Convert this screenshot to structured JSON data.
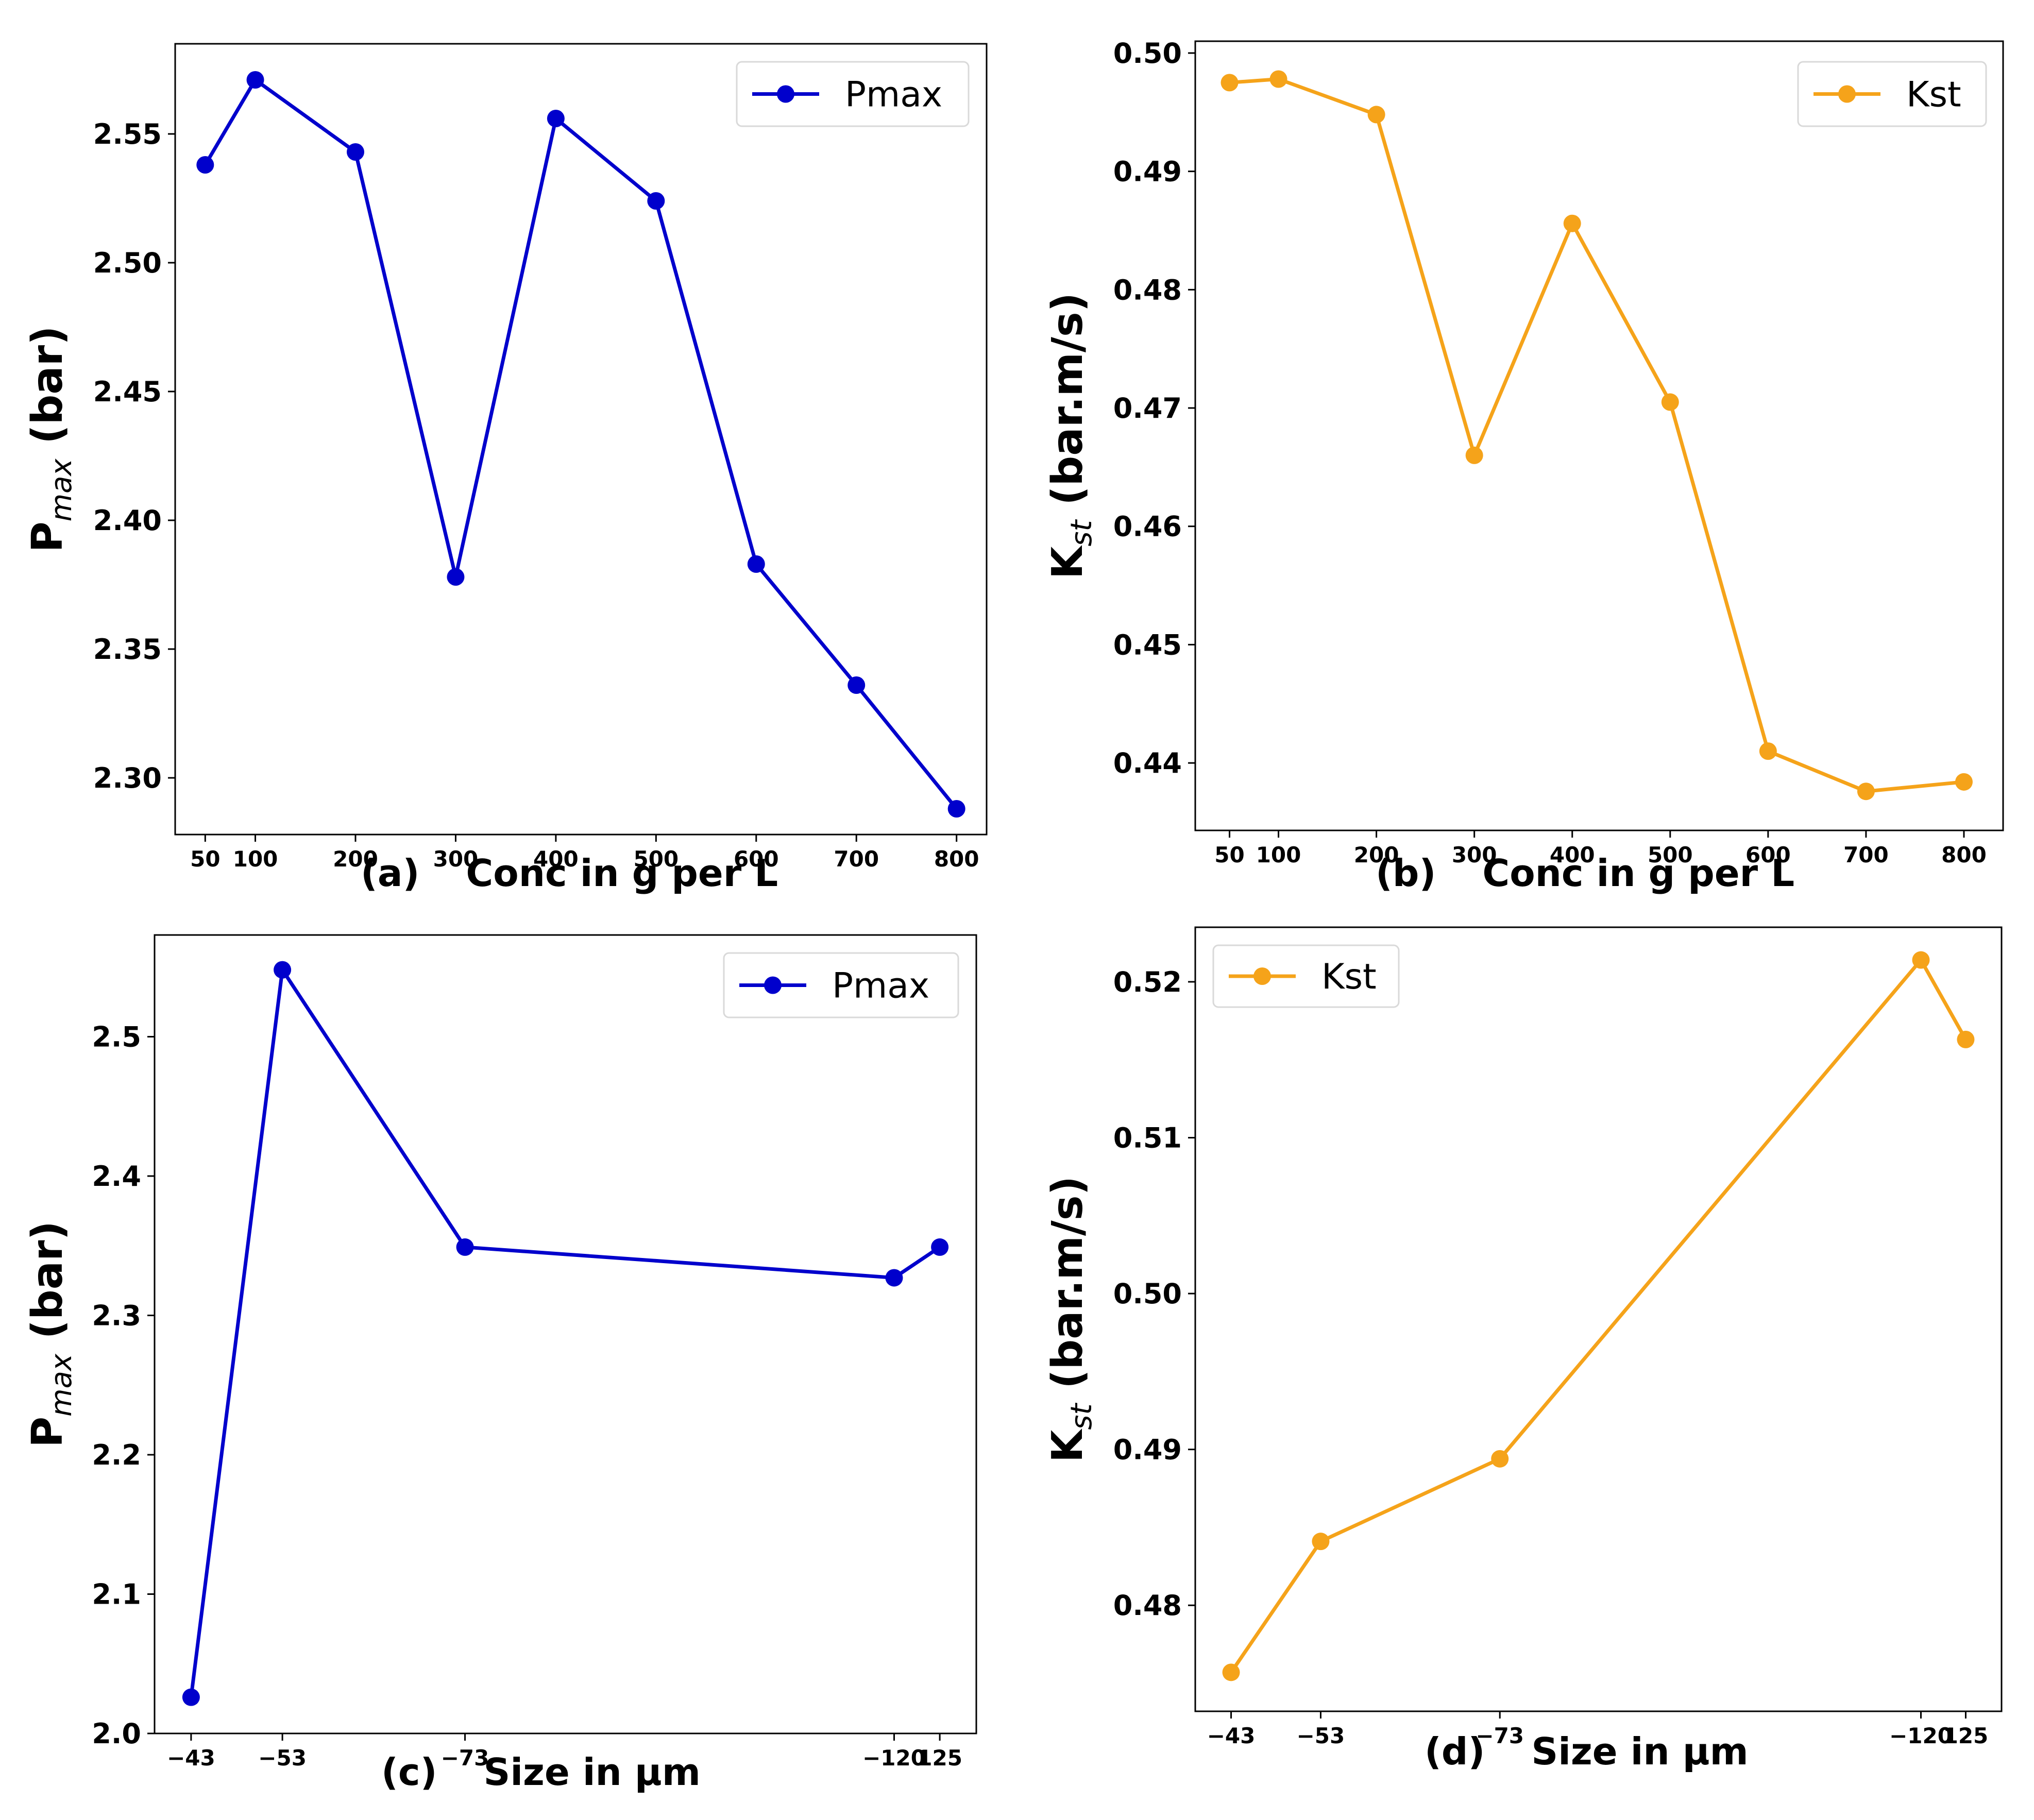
{
  "chart_data": [
    {
      "id": "a",
      "type": "line",
      "panel_label": "(a)",
      "xlabel": "Conc in g per L",
      "ylabel_main": "P",
      "ylabel_sub": "max",
      "ylabel_unit": " (bar)",
      "x": [
        50,
        100,
        200,
        300,
        400,
        500,
        600,
        700,
        800
      ],
      "xticks": [
        50,
        100,
        200,
        300,
        400,
        500,
        600,
        700,
        800
      ],
      "xtick_labels": [
        "50",
        "100",
        "200",
        "300",
        "400",
        "500",
        "600",
        "700",
        "800"
      ],
      "xlim": [
        20,
        830
      ],
      "yticks": [
        2.3,
        2.35,
        2.4,
        2.45,
        2.5,
        2.55
      ],
      "ytick_labels": [
        "2.30",
        "2.35",
        "2.40",
        "2.45",
        "2.50",
        "2.55"
      ],
      "ylim": [
        2.278,
        2.585
      ],
      "series": [
        {
          "name": "Pmax",
          "color": "#0000cc",
          "values": [
            2.538,
            2.571,
            2.543,
            2.378,
            2.556,
            2.524,
            2.383,
            2.336,
            2.288
          ]
        }
      ],
      "legend_position": "top-right"
    },
    {
      "id": "b",
      "type": "line",
      "panel_label": "(b)",
      "xlabel": "Conc in g per L",
      "ylabel_main": "K",
      "ylabel_sub": "st",
      "ylabel_unit": " (bar.m/s)",
      "x": [
        50,
        100,
        200,
        300,
        400,
        500,
        600,
        700,
        800
      ],
      "xticks": [
        50,
        100,
        200,
        300,
        400,
        500,
        600,
        700,
        800
      ],
      "xtick_labels": [
        "50",
        "100",
        "200",
        "300",
        "400",
        "500",
        "600",
        "700",
        "800"
      ],
      "xlim": [
        15,
        840
      ],
      "yticks": [
        0.44,
        0.45,
        0.46,
        0.47,
        0.48,
        0.49,
        0.5
      ],
      "ytick_labels": [
        "0.44",
        "0.45",
        "0.46",
        "0.47",
        "0.48",
        "0.49",
        "0.50"
      ],
      "ylim": [
        0.4343,
        0.501
      ],
      "series": [
        {
          "name": "Kst",
          "color": "#f5a31a",
          "values": [
            0.4975,
            0.4978,
            0.4948,
            0.466,
            0.4856,
            0.4705,
            0.441,
            0.4376,
            0.4384
          ]
        }
      ],
      "legend_position": "top-right"
    },
    {
      "id": "c",
      "type": "line",
      "panel_label": "(c)",
      "xlabel": "Size in µm",
      "ylabel_main": "P",
      "ylabel_sub": "max",
      "ylabel_unit": " (bar)",
      "x": [
        43,
        53,
        73,
        120,
        125
      ],
      "xticks": [
        43,
        53,
        73,
        120,
        125
      ],
      "xtick_labels": [
        "−43",
        "−53",
        "−73",
        "−120",
        "125"
      ],
      "xlim": [
        39.0,
        129.0
      ],
      "yticks": [
        2.0,
        2.1,
        2.2,
        2.3,
        2.4,
        2.5
      ],
      "ytick_labels": [
        "2.0",
        "2.1",
        "2.2",
        "2.3",
        "2.4",
        "2.5"
      ],
      "ylim": [
        2.0,
        2.573
      ],
      "series": [
        {
          "name": "Pmax",
          "color": "#0000cc",
          "values": [
            2.026,
            2.548,
            2.349,
            2.327,
            2.349
          ]
        }
      ],
      "legend_position": "top-right"
    },
    {
      "id": "d",
      "type": "line",
      "panel_label": "(d)",
      "xlabel": "Size in µm",
      "ylabel_main": "K",
      "ylabel_sub": "st",
      "ylabel_unit": " (bar.m/s)",
      "x": [
        43,
        53,
        73,
        120,
        125
      ],
      "xticks": [
        43,
        53,
        73,
        120,
        125
      ],
      "xtick_labels": [
        "−43",
        "−53",
        "−73",
        "−120",
        "125"
      ],
      "xlim": [
        39.0,
        129.0
      ],
      "yticks": [
        0.48,
        0.49,
        0.5,
        0.51,
        0.52
      ],
      "ytick_labels": [
        "0.48",
        "0.49",
        "0.50",
        "0.51",
        "0.52"
      ],
      "ylim": [
        0.4732,
        0.5235
      ],
      "series": [
        {
          "name": "Kst",
          "color": "#f5a31a",
          "values": [
            0.4757,
            0.4841,
            0.4894,
            0.5214,
            0.5163
          ]
        }
      ],
      "legend_position": "top-left"
    }
  ]
}
